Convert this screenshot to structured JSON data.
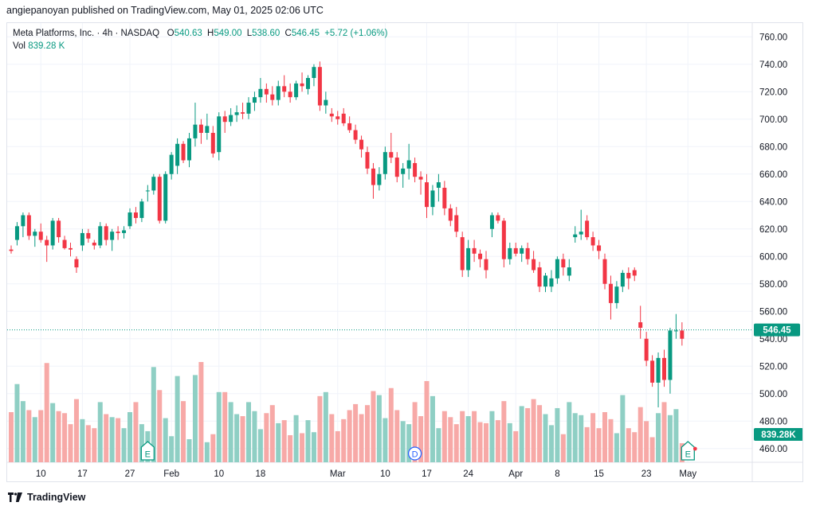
{
  "header": {
    "publish_line": "angiepanoyan published on TradingView.com, May 01, 2025 02:06 UTC"
  },
  "legend": {
    "symbol": "Meta Platforms, Inc. · 4h · NASDAQ",
    "open_label": "O",
    "open": "540.63",
    "high_label": "H",
    "high": "549.00",
    "low_label": "L",
    "low": "538.60",
    "close_label": "C",
    "close": "546.45",
    "change": "+5.72 (+1.06%)",
    "vol_label": "Vol",
    "vol": "839.28 K"
  },
  "footer": {
    "brand": "TradingView"
  },
  "colors": {
    "up": "#089981",
    "down": "#f23645",
    "vol_up": "#8fcfc4",
    "vol_down": "#f7a9a7",
    "grid": "#f0f3fa",
    "axis_text": "#131722"
  },
  "chart_data": {
    "type": "candlestick",
    "title": "Meta Platforms, Inc. · 4h · NASDAQ",
    "ylim": [
      450,
      770
    ],
    "y_ticks": [
      460,
      480,
      500,
      520,
      540,
      560,
      580,
      600,
      620,
      640,
      660,
      680,
      700,
      720,
      740,
      760
    ],
    "x_tick_labels": [
      "10",
      "17",
      "27",
      "Feb",
      "10",
      "18",
      "Mar",
      "10",
      "17",
      "24",
      "Apr",
      "8",
      "15",
      "23",
      "May"
    ],
    "x_tick_bar_index": [
      5,
      12,
      20,
      27,
      35,
      42,
      55,
      63,
      70,
      77,
      85,
      92,
      99,
      107,
      114
    ],
    "last_price": 546.45,
    "last_price_label": "546.45",
    "volume_label": "839.28K",
    "volume_max_display": 1,
    "event_markers": [
      {
        "label": "E",
        "bar_index": 23,
        "kind": "earnings"
      },
      {
        "label": "D",
        "bar_index": 68,
        "kind": "dividend"
      },
      {
        "label": "E",
        "bar_index": 114,
        "kind": "earnings"
      }
    ],
    "candles": [
      {
        "o": 605,
        "h": 608,
        "l": 602,
        "c": 604,
        "v": 0.5
      },
      {
        "o": 612,
        "h": 625,
        "l": 608,
        "c": 622,
        "v": 0.78
      },
      {
        "o": 622,
        "h": 632,
        "l": 614,
        "c": 630,
        "v": 0.61
      },
      {
        "o": 630,
        "h": 632,
        "l": 612,
        "c": 615,
        "v": 0.52
      },
      {
        "o": 615,
        "h": 620,
        "l": 607,
        "c": 618,
        "v": 0.45
      },
      {
        "o": 618,
        "h": 624,
        "l": 610,
        "c": 612,
        "v": 0.52
      },
      {
        "o": 612,
        "h": 615,
        "l": 596,
        "c": 608,
        "v": 0.99
      },
      {
        "o": 608,
        "h": 628,
        "l": 605,
        "c": 626,
        "v": 0.59
      },
      {
        "o": 626,
        "h": 628,
        "l": 610,
        "c": 614,
        "v": 0.51
      },
      {
        "o": 612,
        "h": 615,
        "l": 605,
        "c": 606,
        "v": 0.49
      },
      {
        "o": 606,
        "h": 610,
        "l": 600,
        "c": 605,
        "v": 0.38
      },
      {
        "o": 598,
        "h": 600,
        "l": 588,
        "c": 592,
        "v": 0.63
      },
      {
        "o": 608,
        "h": 620,
        "l": 604,
        "c": 617,
        "v": 0.43
      },
      {
        "o": 617,
        "h": 620,
        "l": 610,
        "c": 613,
        "v": 0.37
      },
      {
        "o": 610,
        "h": 612,
        "l": 605,
        "c": 608,
        "v": 0.34
      },
      {
        "o": 608,
        "h": 625,
        "l": 606,
        "c": 622,
        "v": 0.6
      },
      {
        "o": 622,
        "h": 624,
        "l": 608,
        "c": 612,
        "v": 0.48
      },
      {
        "o": 612,
        "h": 620,
        "l": 604,
        "c": 618,
        "v": 0.45
      },
      {
        "o": 618,
        "h": 622,
        "l": 612,
        "c": 617,
        "v": 0.44
      },
      {
        "o": 617,
        "h": 622,
        "l": 613,
        "c": 619,
        "v": 0.34
      },
      {
        "o": 622,
        "h": 635,
        "l": 620,
        "c": 632,
        "v": 0.5
      },
      {
        "o": 632,
        "h": 636,
        "l": 624,
        "c": 628,
        "v": 0.6
      },
      {
        "o": 628,
        "h": 642,
        "l": 625,
        "c": 640,
        "v": 0.38
      },
      {
        "o": 648,
        "h": 652,
        "l": 640,
        "c": 648,
        "v": 0.31
      },
      {
        "o": 648,
        "h": 660,
        "l": 645,
        "c": 658,
        "v": 0.95
      },
      {
        "o": 658,
        "h": 660,
        "l": 624,
        "c": 626,
        "v": 0.72
      },
      {
        "o": 626,
        "h": 662,
        "l": 624,
        "c": 660,
        "v": 0.44
      },
      {
        "o": 660,
        "h": 676,
        "l": 656,
        "c": 674,
        "v": 0.26
      },
      {
        "o": 666,
        "h": 686,
        "l": 660,
        "c": 682,
        "v": 0.86
      },
      {
        "o": 682,
        "h": 684,
        "l": 668,
        "c": 670,
        "v": 0.61
      },
      {
        "o": 670,
        "h": 690,
        "l": 665,
        "c": 686,
        "v": 0.23
      },
      {
        "o": 686,
        "h": 712,
        "l": 680,
        "c": 696,
        "v": 0.87
      },
      {
        "o": 696,
        "h": 700,
        "l": 682,
        "c": 690,
        "v": 1.0
      },
      {
        "o": 690,
        "h": 704,
        "l": 685,
        "c": 695,
        "v": 0.2
      },
      {
        "o": 690,
        "h": 695,
        "l": 672,
        "c": 675,
        "v": 0.28
      },
      {
        "o": 676,
        "h": 705,
        "l": 670,
        "c": 702,
        "v": 0.7
      },
      {
        "o": 702,
        "h": 706,
        "l": 690,
        "c": 698,
        "v": 0.7
      },
      {
        "o": 698,
        "h": 708,
        "l": 695,
        "c": 703,
        "v": 0.6
      },
      {
        "o": 703,
        "h": 710,
        "l": 698,
        "c": 705,
        "v": 0.48
      },
      {
        "o": 705,
        "h": 712,
        "l": 700,
        "c": 704,
        "v": 0.46
      },
      {
        "o": 704,
        "h": 716,
        "l": 700,
        "c": 712,
        "v": 0.6
      },
      {
        "o": 712,
        "h": 720,
        "l": 706,
        "c": 716,
        "v": 0.51
      },
      {
        "o": 716,
        "h": 730,
        "l": 712,
        "c": 722,
        "v": 0.33
      },
      {
        "o": 722,
        "h": 726,
        "l": 712,
        "c": 718,
        "v": 0.49
      },
      {
        "o": 718,
        "h": 724,
        "l": 710,
        "c": 714,
        "v": 0.57
      },
      {
        "o": 714,
        "h": 728,
        "l": 710,
        "c": 724,
        "v": 0.39
      },
      {
        "o": 724,
        "h": 732,
        "l": 716,
        "c": 720,
        "v": 0.42
      },
      {
        "o": 720,
        "h": 726,
        "l": 712,
        "c": 716,
        "v": 0.27
      },
      {
        "o": 716,
        "h": 728,
        "l": 714,
        "c": 726,
        "v": 0.47
      },
      {
        "o": 726,
        "h": 734,
        "l": 720,
        "c": 724,
        "v": 0.29
      },
      {
        "o": 722,
        "h": 732,
        "l": 718,
        "c": 730,
        "v": 0.42
      },
      {
        "o": 730,
        "h": 740,
        "l": 724,
        "c": 738,
        "v": 0.3
      },
      {
        "o": 738,
        "h": 742,
        "l": 706,
        "c": 710,
        "v": 0.66
      },
      {
        "o": 710,
        "h": 720,
        "l": 704,
        "c": 714,
        "v": 0.7
      },
      {
        "o": 704,
        "h": 708,
        "l": 698,
        "c": 702,
        "v": 0.48
      },
      {
        "o": 702,
        "h": 706,
        "l": 696,
        "c": 700,
        "v": 0.31
      },
      {
        "o": 704,
        "h": 708,
        "l": 695,
        "c": 697,
        "v": 0.43
      },
      {
        "o": 697,
        "h": 702,
        "l": 690,
        "c": 692,
        "v": 0.52
      },
      {
        "o": 692,
        "h": 696,
        "l": 682,
        "c": 685,
        "v": 0.58
      },
      {
        "o": 685,
        "h": 688,
        "l": 672,
        "c": 678,
        "v": 0.48
      },
      {
        "o": 676,
        "h": 680,
        "l": 660,
        "c": 664,
        "v": 0.57
      },
      {
        "o": 664,
        "h": 668,
        "l": 642,
        "c": 652,
        "v": 0.71
      },
      {
        "o": 652,
        "h": 665,
        "l": 648,
        "c": 660,
        "v": 0.67
      },
      {
        "o": 660,
        "h": 680,
        "l": 656,
        "c": 676,
        "v": 0.44
      },
      {
        "o": 676,
        "h": 690,
        "l": 668,
        "c": 672,
        "v": 0.74
      },
      {
        "o": 672,
        "h": 676,
        "l": 654,
        "c": 658,
        "v": 0.52
      },
      {
        "o": 660,
        "h": 668,
        "l": 650,
        "c": 664,
        "v": 0.41
      },
      {
        "o": 664,
        "h": 682,
        "l": 656,
        "c": 670,
        "v": 0.38
      },
      {
        "o": 668,
        "h": 672,
        "l": 654,
        "c": 658,
        "v": 0.6
      },
      {
        "o": 658,
        "h": 662,
        "l": 645,
        "c": 656,
        "v": 0.46
      },
      {
        "o": 654,
        "h": 660,
        "l": 628,
        "c": 636,
        "v": 0.81
      },
      {
        "o": 636,
        "h": 652,
        "l": 630,
        "c": 648,
        "v": 0.66
      },
      {
        "o": 650,
        "h": 660,
        "l": 640,
        "c": 654,
        "v": 0.34
      },
      {
        "o": 650,
        "h": 655,
        "l": 630,
        "c": 635,
        "v": 0.51
      },
      {
        "o": 635,
        "h": 638,
        "l": 622,
        "c": 626,
        "v": 0.45
      },
      {
        "o": 630,
        "h": 636,
        "l": 614,
        "c": 618,
        "v": 0.38
      },
      {
        "o": 614,
        "h": 618,
        "l": 585,
        "c": 590,
        "v": 0.51
      },
      {
        "o": 590,
        "h": 612,
        "l": 585,
        "c": 606,
        "v": 0.46
      },
      {
        "o": 606,
        "h": 612,
        "l": 596,
        "c": 602,
        "v": 0.51
      },
      {
        "o": 602,
        "h": 605,
        "l": 592,
        "c": 598,
        "v": 0.4
      },
      {
        "o": 598,
        "h": 604,
        "l": 584,
        "c": 590,
        "v": 0.39
      },
      {
        "o": 620,
        "h": 632,
        "l": 614,
        "c": 630,
        "v": 0.51
      },
      {
        "o": 630,
        "h": 632,
        "l": 624,
        "c": 626,
        "v": 0.42
      },
      {
        "o": 626,
        "h": 628,
        "l": 592,
        "c": 598,
        "v": 0.61
      },
      {
        "o": 598,
        "h": 610,
        "l": 594,
        "c": 606,
        "v": 0.39
      },
      {
        "o": 606,
        "h": 610,
        "l": 600,
        "c": 602,
        "v": 0.31
      },
      {
        "o": 602,
        "h": 608,
        "l": 596,
        "c": 606,
        "v": 0.56
      },
      {
        "o": 606,
        "h": 610,
        "l": 594,
        "c": 598,
        "v": 0.54
      },
      {
        "o": 598,
        "h": 604,
        "l": 588,
        "c": 590,
        "v": 0.63
      },
      {
        "o": 592,
        "h": 596,
        "l": 574,
        "c": 578,
        "v": 0.57
      },
      {
        "o": 578,
        "h": 588,
        "l": 574,
        "c": 586,
        "v": 0.48
      },
      {
        "o": 578,
        "h": 590,
        "l": 574,
        "c": 584,
        "v": 0.37
      },
      {
        "o": 584,
        "h": 600,
        "l": 580,
        "c": 598,
        "v": 0.54
      },
      {
        "o": 598,
        "h": 602,
        "l": 586,
        "c": 592,
        "v": 0.28
      },
      {
        "o": 586,
        "h": 598,
        "l": 582,
        "c": 592,
        "v": 0.6
      },
      {
        "o": 614,
        "h": 622,
        "l": 610,
        "c": 616,
        "v": 0.49
      },
      {
        "o": 616,
        "h": 634,
        "l": 612,
        "c": 618,
        "v": 0.47
      },
      {
        "o": 626,
        "h": 630,
        "l": 612,
        "c": 614,
        "v": 0.35
      },
      {
        "o": 614,
        "h": 618,
        "l": 604,
        "c": 608,
        "v": 0.49
      },
      {
        "o": 608,
        "h": 612,
        "l": 598,
        "c": 604,
        "v": 0.34
      },
      {
        "o": 598,
        "h": 602,
        "l": 576,
        "c": 580,
        "v": 0.5
      },
      {
        "o": 580,
        "h": 586,
        "l": 554,
        "c": 566,
        "v": 0.43
      },
      {
        "o": 566,
        "h": 582,
        "l": 562,
        "c": 578,
        "v": 0.29
      },
      {
        "o": 578,
        "h": 590,
        "l": 574,
        "c": 588,
        "v": 0.67
      },
      {
        "o": 588,
        "h": 592,
        "l": 576,
        "c": 584,
        "v": 0.34
      },
      {
        "o": 590,
        "h": 592,
        "l": 582,
        "c": 586,
        "v": 0.3
      },
      {
        "o": 552,
        "h": 564,
        "l": 540,
        "c": 548,
        "v": 0.55
      },
      {
        "o": 540,
        "h": 545,
        "l": 520,
        "c": 524,
        "v": 0.41
      },
      {
        "o": 524,
        "h": 528,
        "l": 505,
        "c": 508,
        "v": 0.25
      },
      {
        "o": 508,
        "h": 530,
        "l": 490,
        "c": 526,
        "v": 0.49
      },
      {
        "o": 526,
        "h": 532,
        "l": 505,
        "c": 510,
        "v": 0.6
      },
      {
        "o": 510,
        "h": 548,
        "l": 500,
        "c": 546,
        "v": 0.47
      },
      {
        "o": 546,
        "h": 558,
        "l": 540,
        "c": 546,
        "v": 0.53
      },
      {
        "o": 546,
        "h": 552,
        "l": 535,
        "c": 540,
        "v": 0.19
      }
    ]
  }
}
